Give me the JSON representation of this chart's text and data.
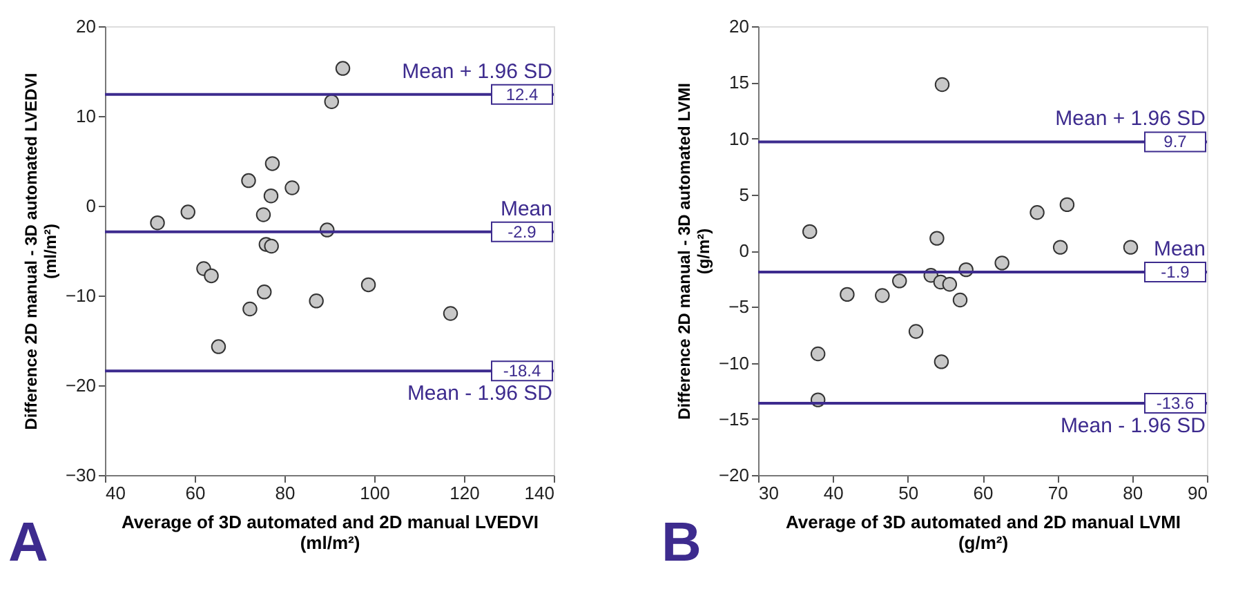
{
  "chart_data": [
    {
      "type": "scatter",
      "xlabel": "Average of 3D automated and 2D manual LVEDVI\n(ml/m²)",
      "ylabel": "Difference 2D manual - 3D automated LVEDVI\n(ml/m²)",
      "annotations": [
        "A",
        {
          "text": "12.4",
          "y": 12.4
        },
        {
          "text": "-2.9",
          "y": -2.9
        },
        {
          "text": "-18.4",
          "y": -18.4
        }
      ],
      "x": [
        93.0,
        90.5,
        77.3,
        72.0,
        81.7,
        77.0,
        58.5,
        75.3,
        51.7,
        89.5,
        75.9,
        77.1,
        62.0,
        63.7,
        98.7,
        75.5,
        87.1,
        72.3,
        117.0,
        65.3
      ],
      "values": [
        15.3,
        11.6,
        4.7,
        2.8,
        2.0,
        1.1,
        -0.7,
        -1.0,
        -1.9,
        -2.7,
        -4.3,
        -4.5,
        -7.0,
        -7.8,
        -8.8,
        -9.6,
        -10.6,
        -11.5,
        -12.0,
        -15.7
      ],
      "color": "#c8c8c8",
      "marker": "circle",
      "grid": false,
      "xlim": [
        40,
        140
      ],
      "xticks": [
        40,
        60,
        80,
        100,
        120,
        140
      ],
      "ylim": [
        -30,
        20
      ],
      "yticks": [
        -30,
        -20,
        -10,
        0,
        10,
        20
      ],
      "ref_lines": [
        {
          "axis": "y",
          "value": 12.4,
          "label": "Mean + 1.96 SD",
          "color": "#3d2b8e"
        },
        {
          "axis": "y",
          "value": -2.9,
          "label": "Mean",
          "color": "#3d2b8e"
        },
        {
          "axis": "y",
          "value": -18.4,
          "label": "Mean - 1.96 SD",
          "color": "#3d2b8e"
        }
      ]
    },
    {
      "type": "scatter",
      "xlabel": "Average of 3D automated and 2D manual LVMI\n(g/m²)",
      "ylabel": "Difference 2D manual - 3D automated LVMI\n(g/m²)",
      "annotations": [
        "B",
        {
          "text": "9.7",
          "y": 9.7
        },
        {
          "text": "-1.9",
          "y": -1.9
        },
        {
          "text": "-13.6",
          "y": -13.6
        }
      ],
      "x": [
        54.6,
        36.9,
        53.9,
        67.3,
        71.3,
        70.4,
        79.8,
        62.6,
        57.8,
        53.1,
        54.4,
        55.6,
        48.9,
        41.9,
        46.6,
        57.0,
        51.1,
        38.0,
        54.5,
        38.0
      ],
      "values": [
        14.8,
        1.7,
        1.1,
        3.4,
        4.1,
        0.3,
        0.3,
        -1.1,
        -1.7,
        -2.2,
        -2.8,
        -3.0,
        -2.7,
        -3.9,
        -4.0,
        -4.4,
        -7.2,
        -9.2,
        -9.9,
        -13.3
      ],
      "color": "#c8c8c8",
      "marker": "circle",
      "grid": false,
      "xlim": [
        30,
        90
      ],
      "xticks": [
        30,
        40,
        50,
        60,
        70,
        80,
        90
      ],
      "ylim": [
        -20,
        20
      ],
      "yticks": [
        -20,
        -15,
        -10,
        -5,
        0,
        5,
        10,
        15,
        20
      ],
      "ref_lines": [
        {
          "axis": "y",
          "value": 9.7,
          "label": "Mean + 1.96 SD",
          "color": "#3d2b8e"
        },
        {
          "axis": "y",
          "value": -1.9,
          "label": "Mean",
          "color": "#3d2b8e"
        },
        {
          "axis": "y",
          "value": -13.6,
          "label": "Mean - 1.96 SD",
          "color": "#3d2b8e"
        }
      ]
    }
  ]
}
